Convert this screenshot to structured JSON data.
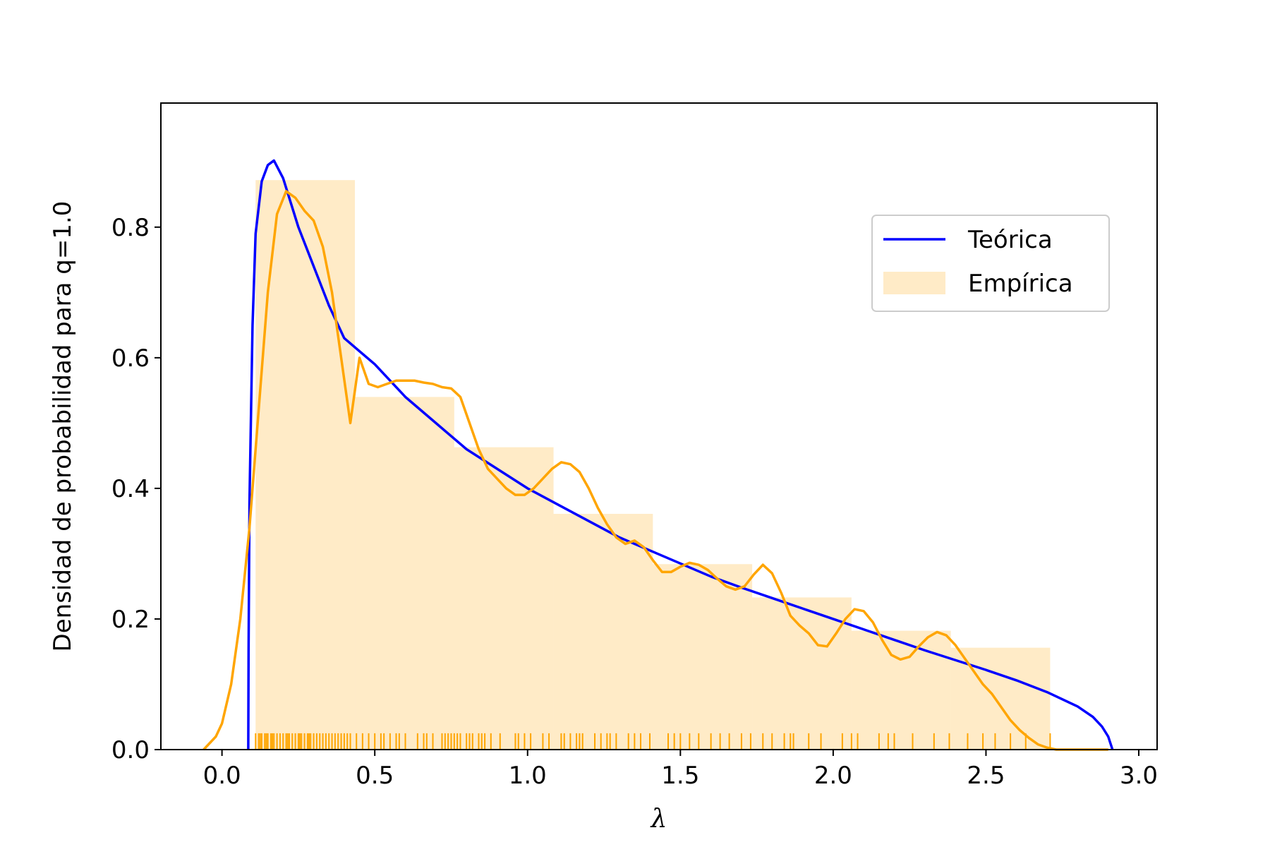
{
  "chart_data": {
    "type": "bar",
    "title": "",
    "xlabel": "λ",
    "ylabel": "Densidad de probabilidad para q=1.0",
    "xlim": [
      -0.2,
      3.06
    ],
    "ylim": [
      0.0,
      0.99
    ],
    "xticks": [
      0.0,
      0.5,
      1.0,
      1.5,
      2.0,
      2.5,
      3.0
    ],
    "xtick_labels": [
      "0.0",
      "0.5",
      "1.0",
      "1.5",
      "2.0",
      "2.5",
      "3.0"
    ],
    "yticks": [
      0.0,
      0.2,
      0.4,
      0.6,
      0.8
    ],
    "ytick_labels": [
      "0.0",
      "0.2",
      "0.4",
      "0.6",
      "0.8"
    ],
    "grid": false,
    "legend": {
      "position": "upper right",
      "entries": [
        {
          "label": "Teórica",
          "kind": "line",
          "color": "#0000ff"
        },
        {
          "label": "Empírica",
          "kind": "patch",
          "color": "#ffa500"
        }
      ]
    },
    "histogram": {
      "name": "Empírica",
      "color": "#ffa500",
      "bins": [
        {
          "x0": 0.11,
          "x1": 0.435,
          "height": 0.872
        },
        {
          "x0": 0.435,
          "x1": 0.76,
          "height": 0.54
        },
        {
          "x0": 0.76,
          "x1": 1.085,
          "height": 0.463
        },
        {
          "x0": 1.085,
          "x1": 1.41,
          "height": 0.361
        },
        {
          "x0": 1.41,
          "x1": 1.735,
          "height": 0.284
        },
        {
          "x0": 1.735,
          "x1": 2.06,
          "height": 0.233
        },
        {
          "x0": 2.06,
          "x1": 2.385,
          "height": 0.182
        },
        {
          "x0": 2.385,
          "x1": 2.71,
          "height": 0.156
        }
      ]
    },
    "theoretical_curve": {
      "name": "Teórica",
      "color": "#0000ff",
      "x": [
        0.086,
        0.087,
        0.09,
        0.1,
        0.11,
        0.13,
        0.15,
        0.17,
        0.2,
        0.25,
        0.3,
        0.35,
        0.4,
        0.5,
        0.6,
        0.7,
        0.8,
        0.9,
        1.0,
        1.1,
        1.2,
        1.3,
        1.4,
        1.5,
        1.6,
        1.7,
        1.8,
        1.9,
        2.0,
        2.1,
        2.2,
        2.3,
        2.4,
        2.5,
        2.6,
        2.7,
        2.8,
        2.85,
        2.88,
        2.9,
        2.914
      ],
      "y": [
        0.0,
        0.15,
        0.38,
        0.65,
        0.79,
        0.87,
        0.895,
        0.902,
        0.875,
        0.8,
        0.74,
        0.68,
        0.63,
        0.59,
        0.54,
        0.5,
        0.46,
        0.43,
        0.4,
        0.375,
        0.35,
        0.325,
        0.305,
        0.285,
        0.265,
        0.248,
        0.232,
        0.216,
        0.2,
        0.184,
        0.168,
        0.152,
        0.137,
        0.122,
        0.106,
        0.088,
        0.066,
        0.05,
        0.035,
        0.02,
        0.0
      ]
    },
    "kde_curve": {
      "name": "Empírica",
      "color": "#ffa500",
      "x": [
        -0.06,
        -0.02,
        0.0,
        0.03,
        0.06,
        0.09,
        0.12,
        0.15,
        0.18,
        0.21,
        0.24,
        0.27,
        0.3,
        0.33,
        0.36,
        0.39,
        0.42,
        0.45,
        0.48,
        0.51,
        0.54,
        0.57,
        0.6,
        0.63,
        0.66,
        0.69,
        0.72,
        0.75,
        0.78,
        0.81,
        0.84,
        0.87,
        0.9,
        0.93,
        0.96,
        0.99,
        1.02,
        1.05,
        1.08,
        1.11,
        1.14,
        1.17,
        1.2,
        1.23,
        1.26,
        1.29,
        1.32,
        1.35,
        1.38,
        1.41,
        1.44,
        1.47,
        1.5,
        1.53,
        1.56,
        1.59,
        1.62,
        1.65,
        1.68,
        1.71,
        1.74,
        1.77,
        1.8,
        1.83,
        1.86,
        1.89,
        1.92,
        1.95,
        1.98,
        2.01,
        2.04,
        2.07,
        2.1,
        2.13,
        2.16,
        2.19,
        2.22,
        2.25,
        2.28,
        2.31,
        2.34,
        2.37,
        2.4,
        2.43,
        2.46,
        2.49,
        2.52,
        2.55,
        2.58,
        2.61,
        2.64,
        2.67,
        2.7,
        2.73,
        2.76,
        2.79,
        2.82,
        2.86,
        2.9
      ],
      "y": [
        0.0,
        0.02,
        0.04,
        0.1,
        0.2,
        0.34,
        0.52,
        0.7,
        0.82,
        0.855,
        0.845,
        0.825,
        0.81,
        0.77,
        0.7,
        0.6,
        0.5,
        0.6,
        0.56,
        0.555,
        0.56,
        0.565,
        0.565,
        0.565,
        0.562,
        0.56,
        0.555,
        0.553,
        0.54,
        0.5,
        0.46,
        0.43,
        0.415,
        0.4,
        0.39,
        0.39,
        0.4,
        0.415,
        0.43,
        0.44,
        0.437,
        0.425,
        0.4,
        0.37,
        0.345,
        0.325,
        0.315,
        0.32,
        0.31,
        0.29,
        0.272,
        0.272,
        0.28,
        0.286,
        0.283,
        0.275,
        0.262,
        0.25,
        0.245,
        0.25,
        0.268,
        0.283,
        0.27,
        0.24,
        0.205,
        0.19,
        0.178,
        0.16,
        0.158,
        0.178,
        0.2,
        0.215,
        0.212,
        0.195,
        0.168,
        0.145,
        0.138,
        0.142,
        0.158,
        0.172,
        0.18,
        0.175,
        0.16,
        0.14,
        0.12,
        0.1,
        0.085,
        0.065,
        0.045,
        0.03,
        0.018,
        0.008,
        0.003,
        0.0,
        0.0,
        0.0,
        0.0,
        0.0,
        0.0
      ]
    },
    "rug": {
      "color": "#ffa500",
      "height": 0.025,
      "x": [
        0.11,
        0.12,
        0.125,
        0.13,
        0.14,
        0.145,
        0.15,
        0.16,
        0.165,
        0.17,
        0.18,
        0.19,
        0.2,
        0.21,
        0.215,
        0.22,
        0.23,
        0.24,
        0.25,
        0.255,
        0.26,
        0.27,
        0.28,
        0.285,
        0.29,
        0.3,
        0.31,
        0.32,
        0.33,
        0.34,
        0.35,
        0.36,
        0.37,
        0.38,
        0.39,
        0.4,
        0.41,
        0.42,
        0.44,
        0.46,
        0.48,
        0.5,
        0.52,
        0.53,
        0.55,
        0.57,
        0.58,
        0.6,
        0.64,
        0.66,
        0.67,
        0.69,
        0.72,
        0.73,
        0.74,
        0.75,
        0.76,
        0.77,
        0.78,
        0.8,
        0.81,
        0.82,
        0.84,
        0.85,
        0.86,
        0.88,
        0.91,
        0.96,
        0.97,
        0.99,
        1.01,
        1.05,
        1.07,
        1.11,
        1.12,
        1.14,
        1.16,
        1.17,
        1.18,
        1.22,
        1.24,
        1.26,
        1.27,
        1.29,
        1.33,
        1.35,
        1.37,
        1.4,
        1.46,
        1.48,
        1.5,
        1.53,
        1.56,
        1.6,
        1.63,
        1.66,
        1.7,
        1.73,
        1.77,
        1.8,
        1.84,
        1.86,
        1.87,
        1.92,
        1.96,
        2.03,
        2.06,
        2.08,
        2.15,
        2.18,
        2.2,
        2.26,
        2.33,
        2.38,
        2.44,
        2.49,
        2.53,
        2.58,
        2.63,
        2.71
      ]
    }
  }
}
